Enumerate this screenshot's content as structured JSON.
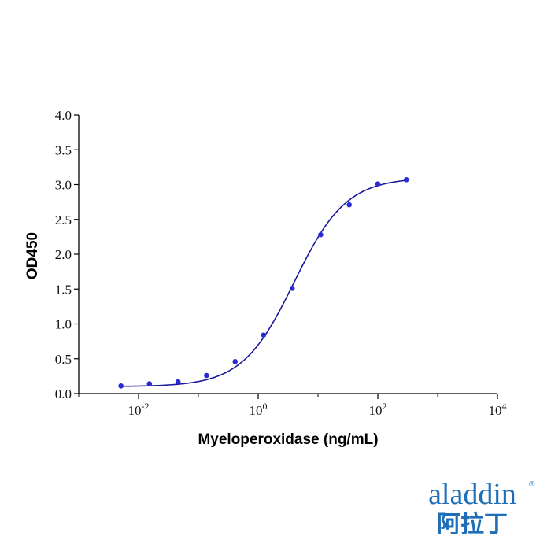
{
  "chart_data": {
    "type": "scatter",
    "xlabel": "Myeloperoxidase (ng/mL)",
    "ylabel": "OD450",
    "x": [
      0.00508,
      0.0152,
      0.0457,
      0.137,
      0.412,
      1.23,
      3.7,
      11.1,
      33.3,
      100,
      300
    ],
    "series": [
      {
        "color": "#2b2bd6",
        "values": [
          0.11,
          0.14,
          0.17,
          0.26,
          0.46,
          0.84,
          1.51,
          2.28,
          2.71,
          3.01,
          3.07
        ]
      }
    ],
    "fit": {
      "color": "#1a1a9c",
      "bottom": 0.1,
      "top": 3.1,
      "ec50": 4,
      "hill": 1
    },
    "xscale": "log",
    "xlim": [
      0.001,
      10000
    ],
    "xticks": [
      {
        "value": 0.01,
        "label": "10",
        "exponent": "-2"
      },
      {
        "value": 1,
        "label": "10",
        "exponent": "0"
      },
      {
        "value": 100,
        "label": "10",
        "exponent": "2"
      },
      {
        "value": 10000,
        "label": "10",
        "exponent": "4"
      }
    ],
    "xminorticks": [
      0.001,
      0.1,
      10,
      1000
    ],
    "ylim": [
      0,
      4
    ],
    "yticks": [
      {
        "value": 0,
        "label": "0.0"
      },
      0.5,
      {
        "value": 1,
        "label": "1.0"
      },
      1.5,
      {
        "value": 2,
        "label": "2.0"
      },
      2.5,
      {
        "value": 3,
        "label": "3.0"
      },
      3.5,
      {
        "value": 4,
        "label": "4.0"
      }
    ]
  },
  "logo": {
    "brand": "aladdin",
    "registered": "®",
    "chinese": "阿拉丁"
  }
}
